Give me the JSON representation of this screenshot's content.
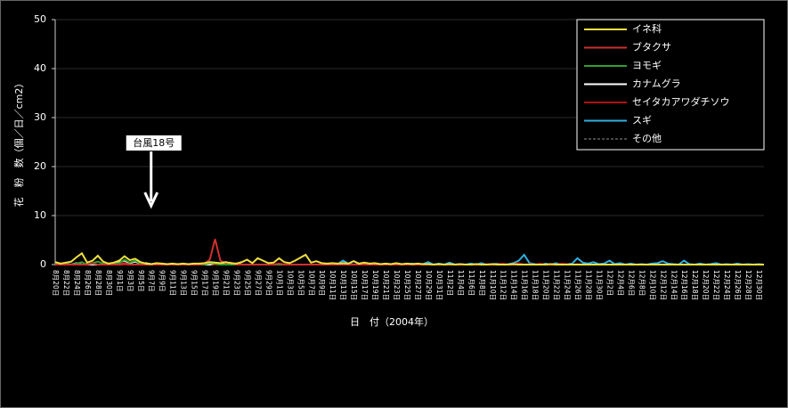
{
  "chart_data": {
    "type": "line",
    "ylabel": "花　粉　数（個／日／cm2）",
    "xlabel": "日　付（2004年）",
    "annotation": "台風18号",
    "annotation_index": 18,
    "categories": [
      "8月20日",
      null,
      "8月22日",
      null,
      "8月24日",
      null,
      "8月26日",
      null,
      "8月28日",
      null,
      "8月30日",
      null,
      "9月1日",
      null,
      "9月3日",
      null,
      "9月5日",
      null,
      "9月7日",
      null,
      "9月9日",
      null,
      "9月11日",
      null,
      "9月13日",
      null,
      "9月15日",
      null,
      "9月17日",
      null,
      "9月19日",
      null,
      "9月21日",
      null,
      "9月23日",
      null,
      "9月25日",
      null,
      "9月27日",
      null,
      "9月29日",
      null,
      "10月1日",
      null,
      "10月3日",
      null,
      "10月5日",
      null,
      "10月7日",
      null,
      "10月9日",
      null,
      "10月11日",
      null,
      "10月13日",
      null,
      "10月15日",
      null,
      "10月17日",
      null,
      "10月19日",
      null,
      "10月21日",
      null,
      "10月23日",
      null,
      "10月25日",
      null,
      "10月27日",
      null,
      "10月29日",
      null,
      "10月31日",
      null,
      "11月2日",
      null,
      "11月4日",
      null,
      "11月6日",
      null,
      "11月8日",
      null,
      "11月10日",
      null,
      "11月12日",
      null,
      "11月14日",
      null,
      "11月16日",
      null,
      "11月18日",
      null,
      "11月20日",
      null,
      "11月22日",
      null,
      "11月24日",
      null,
      "11月26日",
      null,
      "11月28日",
      null,
      "11月30日",
      null,
      "12月2日",
      null,
      "12月4日",
      null,
      "12月6日",
      null,
      "12月8日",
      null,
      "12月10日",
      null,
      "12月12日",
      null,
      "12月14日",
      null,
      "12月16日",
      null,
      "12月18日",
      null,
      "12月20日",
      null,
      "12月22日",
      null,
      "12月24日",
      null,
      "12月26日",
      null,
      "12月28日",
      null,
      "12月30日",
      null
    ],
    "series": [
      {
        "name": "イネ科",
        "color": "#f0e040",
        "values": [
          0.5,
          0.2,
          0.4,
          0.6,
          1.5,
          2.3,
          0.4,
          0.8,
          1.8,
          0.6,
          0.2,
          0.4,
          0.8,
          1.7,
          0.9,
          1.2,
          0.5,
          0.2,
          0.1,
          0.3,
          0.2,
          0.1,
          0.2,
          0.1,
          0.2,
          0.1,
          0.2,
          0.2,
          0.3,
          0.5,
          0.4,
          0.3,
          0.5,
          0.3,
          0.2,
          0.5,
          1.0,
          0.3,
          1.3,
          0.8,
          0.3,
          0.4,
          1.3,
          0.5,
          0.3,
          0.8,
          1.4,
          2.0,
          0.4,
          0.7,
          0.3,
          0.2,
          0.3,
          0.2,
          0.3,
          0.2,
          0.7,
          0.2,
          0.4,
          0.2,
          0.3,
          0.1,
          0.2,
          0.1,
          0.3,
          0.1,
          0.2,
          0.1,
          0.2,
          0.1,
          0.1,
          0,
          0.1,
          0,
          0.1,
          0,
          0.1,
          0,
          0,
          0.1,
          0,
          0,
          0.1,
          0,
          0,
          0,
          0.1,
          0,
          0,
          0,
          0,
          0,
          0,
          0.1,
          0,
          0,
          0,
          0,
          0,
          0,
          0,
          0,
          0,
          0,
          0,
          0,
          0,
          0,
          0,
          0,
          0,
          0,
          0,
          0,
          0,
          0,
          0,
          0,
          0,
          0,
          0,
          0,
          0,
          0,
          0,
          0,
          0,
          0,
          0,
          0,
          0,
          0,
          0,
          0
        ]
      },
      {
        "name": "ブタクサ",
        "color": "#d03030",
        "values": [
          0,
          0,
          0,
          0,
          0,
          0,
          0,
          0.2,
          0,
          0,
          0,
          0,
          0,
          0.3,
          0,
          0,
          0,
          0,
          0,
          0,
          0,
          0,
          0,
          0,
          0,
          0,
          0,
          0,
          0.2,
          1.0,
          5.2,
          0.8,
          0.3,
          0.4,
          0,
          0,
          0,
          0,
          0,
          0,
          0,
          0,
          0.2,
          0,
          0,
          0,
          0,
          0,
          0,
          0,
          0,
          0,
          0,
          0,
          0,
          0,
          0,
          0,
          0,
          0,
          0,
          0,
          0,
          0,
          0,
          0,
          0,
          0,
          0,
          0,
          0,
          0,
          0,
          0,
          0,
          0,
          0,
          0,
          0,
          0,
          0,
          0,
          0,
          0,
          0,
          0,
          0,
          0,
          0,
          0,
          0,
          0,
          0,
          0,
          0,
          0,
          0,
          0,
          0,
          0,
          0,
          0,
          0,
          0,
          0,
          0,
          0,
          0,
          0,
          0,
          0,
          0,
          0,
          0,
          0,
          0,
          0,
          0,
          0,
          0,
          0,
          0,
          0,
          0,
          0,
          0,
          0,
          0,
          0,
          0,
          0,
          0,
          0,
          0
        ]
      },
      {
        "name": "ヨモギ",
        "color": "#30a030",
        "values": [
          0.2,
          0,
          0.3,
          0,
          0.2,
          0.5,
          0,
          0.3,
          0.6,
          0.2,
          0,
          0.2,
          0.3,
          1.0,
          0.4,
          0.8,
          0.2,
          0,
          0,
          0,
          0,
          0,
          0,
          0,
          0,
          0,
          0,
          0,
          0,
          0.3,
          0.2,
          0,
          0,
          0,
          0,
          0,
          0,
          0,
          0,
          0,
          0,
          0,
          0,
          0,
          0,
          0,
          0,
          0,
          0,
          0,
          0,
          0,
          0,
          0,
          0,
          0,
          0,
          0,
          0,
          0,
          0,
          0,
          0,
          0,
          0,
          0,
          0,
          0,
          0,
          0,
          0,
          0,
          0,
          0,
          0,
          0,
          0,
          0,
          0,
          0,
          0,
          0,
          0,
          0,
          0,
          0,
          0,
          0,
          0,
          0,
          0,
          0,
          0,
          0,
          0,
          0,
          0,
          0,
          0,
          0,
          0,
          0,
          0,
          0,
          0,
          0,
          0,
          0,
          0,
          0,
          0,
          0,
          0,
          0,
          0,
          0,
          0,
          0,
          0,
          0,
          0,
          0,
          0,
          0,
          0,
          0,
          0,
          0,
          0,
          0,
          0,
          0,
          0,
          0
        ]
      },
      {
        "name": "カナムグラ",
        "color": "#ffffff",
        "values": [
          0,
          0,
          0,
          0,
          0.3,
          0,
          0,
          0,
          0,
          0,
          0,
          0.3,
          0.5,
          0.8,
          0.3,
          0.6,
          0.2,
          0.3,
          0.1,
          0,
          0.2,
          0,
          0.1,
          0,
          0,
          0,
          0,
          0,
          0,
          0,
          0.3,
          0.2,
          0.5,
          0,
          0.2,
          0,
          0,
          0,
          0,
          0,
          0,
          0,
          0,
          0,
          0,
          0,
          0,
          0,
          0,
          0,
          0,
          0,
          0,
          0,
          0,
          0,
          0,
          0,
          0,
          0,
          0,
          0,
          0,
          0,
          0,
          0,
          0,
          0,
          0,
          0,
          0,
          0,
          0,
          0,
          0,
          0,
          0,
          0,
          0,
          0,
          0,
          0,
          0,
          0,
          0,
          0,
          0,
          0,
          0,
          0,
          0,
          0,
          0,
          0,
          0,
          0,
          0,
          0,
          0,
          0,
          0,
          0,
          0,
          0,
          0,
          0,
          0,
          0,
          0,
          0,
          0,
          0,
          0,
          0,
          0,
          0,
          0,
          0,
          0,
          0,
          0,
          0,
          0,
          0,
          0,
          0,
          0,
          0,
          0,
          0,
          0,
          0,
          0,
          0
        ]
      },
      {
        "name": "セイタカアワダチソウ",
        "color": "#b01010",
        "values": [
          0,
          0,
          0,
          0,
          0,
          0,
          0,
          0,
          0,
          0,
          0,
          0,
          0,
          0,
          0,
          0,
          0,
          0,
          0,
          0,
          0,
          0,
          0,
          0,
          0,
          0,
          0,
          0,
          0,
          0,
          0,
          0,
          0,
          0,
          0,
          0,
          0,
          0,
          0,
          0,
          0,
          0,
          0,
          0,
          0,
          0,
          0,
          0,
          0,
          0,
          0,
          0,
          0,
          0,
          0,
          0,
          0,
          0,
          0,
          0,
          0,
          0,
          0,
          0,
          0,
          0,
          0,
          0,
          0,
          0,
          0,
          0,
          0,
          0,
          0,
          0,
          0,
          0,
          0,
          0,
          0,
          0.1,
          0,
          0.1,
          0.2,
          0,
          0.1,
          0.3,
          0,
          0.1,
          0,
          0.2,
          0,
          0.1,
          0,
          0.2,
          0.1,
          0,
          0.1,
          0,
          0,
          0,
          0,
          0,
          0,
          0,
          0,
          0,
          0,
          0,
          0,
          0,
          0,
          0,
          0,
          0,
          0,
          0,
          0,
          0,
          0,
          0,
          0,
          0,
          0,
          0,
          0,
          0,
          0,
          0,
          0,
          0,
          0,
          0
        ]
      },
      {
        "name": "スギ",
        "color": "#30b0e0",
        "values": [
          0,
          0,
          0,
          0,
          0,
          0,
          0,
          0,
          0,
          0,
          0,
          0,
          0,
          0,
          0,
          0,
          0,
          0,
          0,
          0,
          0,
          0,
          0,
          0,
          0,
          0,
          0,
          0,
          0,
          0,
          0,
          0,
          0,
          0,
          0,
          0,
          0,
          0,
          0,
          0,
          0,
          0,
          0,
          0,
          0,
          0,
          0,
          0,
          0,
          0,
          0,
          0,
          0,
          0.1,
          0.8,
          0.2,
          0,
          0.1,
          0.3,
          0.1,
          0.2,
          0,
          0.1,
          0,
          0.2,
          0,
          0.1,
          0.2,
          0,
          0.1,
          0.5,
          0,
          0.2,
          0,
          0.4,
          0,
          0.1,
          0,
          0.2,
          0,
          0.3,
          0,
          0.1,
          0.2,
          0,
          0.1,
          0.3,
          0.8,
          2.0,
          0.3,
          0.1,
          0,
          0.2,
          0,
          0.3,
          0,
          0.1,
          0.2,
          1.3,
          0.4,
          0.2,
          0.5,
          0.1,
          0.2,
          0.8,
          0.1,
          0.3,
          0,
          0.2,
          0,
          0.1,
          0,
          0.2,
          0.3,
          0.7,
          0.2,
          0.1,
          0,
          0.8,
          0.1,
          0,
          0.2,
          0,
          0.1,
          0.3,
          0,
          0.1,
          0,
          0.2,
          0,
          0.1,
          0,
          0.1,
          0
        ]
      },
      {
        "name": "その他",
        "color": "#909090",
        "dash": true,
        "values": [
          0.1,
          0.1,
          0.1,
          0.1,
          0.1,
          0.1,
          0.1,
          0.1,
          0.1,
          0.1,
          0.1,
          0.1,
          0.1,
          0.1,
          0.1,
          0.1,
          0.1,
          0.1,
          0.1,
          0.1,
          0.1,
          0.1,
          0.1,
          0.1,
          0.1,
          0.1,
          0.1,
          0.1,
          0.1,
          0.1,
          0.1,
          0.1,
          0.1,
          0.1,
          0.1,
          0.1,
          0.1,
          0.1,
          0.1,
          0.1,
          0.1,
          0.1,
          0.1,
          0.1,
          0.1,
          0.1,
          0.1,
          0.1,
          0.1,
          0.1,
          0.1,
          0.1,
          0.1,
          0.1,
          0.1,
          0.1,
          0.1,
          0.1,
          0.1,
          0.1,
          0.1,
          0.1,
          0.1,
          0.1,
          0.1,
          0.1,
          0.1,
          0.1,
          0.1,
          0.1,
          0.1,
          0.1,
          0.1,
          0.1,
          0.1,
          0.1,
          0.1,
          0.1,
          0.1,
          0.1,
          0.1,
          0.1,
          0.1,
          0.1,
          0.1,
          0.1,
          0.1,
          0.1,
          0.1,
          0.1,
          0.1,
          0.1,
          0.1,
          0.1,
          0.1,
          0.1,
          0.1,
          0.1,
          0.1,
          0.1,
          0.1,
          0.1,
          0.1,
          0.1,
          0.1,
          0.1,
          0.1,
          0.1,
          0.1,
          0.1,
          0.1,
          0.1,
          0.1,
          0.1,
          0.1,
          0.1,
          0.1,
          0.1,
          0.1,
          0.1,
          0.1,
          0.1,
          0.1,
          0.1,
          0.1,
          0.1,
          0.1,
          0.1,
          0.1,
          0.1,
          0.1,
          0.1,
          0.1,
          0.1
        ]
      }
    ],
    "ylim": [
      0,
      50
    ],
    "yticks": [
      0,
      10,
      20,
      30,
      40,
      50
    ],
    "grid": true,
    "legend": "upper right"
  }
}
